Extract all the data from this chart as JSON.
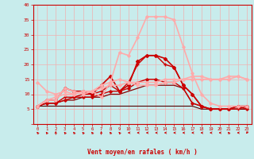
{
  "x": [
    0,
    1,
    2,
    3,
    4,
    5,
    6,
    7,
    8,
    9,
    10,
    11,
    12,
    13,
    14,
    15,
    16,
    17,
    18,
    19,
    20,
    21,
    22,
    23
  ],
  "background_color": "#c8ecec",
  "grid_color": "#f0b0b0",
  "xlabel": "Vent moyen/en rafales ( km/h )",
  "xlabel_color": "#cc0000",
  "tick_color": "#cc0000",
  "ylim": [
    0,
    40
  ],
  "yticks": [
    0,
    5,
    10,
    15,
    20,
    25,
    30,
    35,
    40
  ],
  "series": [
    {
      "y": [
        6,
        6,
        6,
        6,
        6,
        6,
        6,
        6,
        6,
        6,
        6,
        6,
        6,
        6,
        6,
        6,
        6,
        6,
        5,
        5,
        5,
        5,
        5,
        5
      ],
      "color": "#550000",
      "lw": 0.8,
      "marker": null,
      "ms": 0
    },
    {
      "y": [
        6,
        7,
        7,
        8,
        8,
        9,
        9,
        9,
        10,
        10,
        11,
        12,
        13,
        13,
        13,
        13,
        12,
        7,
        6,
        5,
        5,
        5,
        5,
        5
      ],
      "color": "#880000",
      "lw": 0.9,
      "marker": null,
      "ms": 0
    },
    {
      "y": [
        6,
        7,
        7,
        8,
        9,
        9,
        9,
        10,
        11,
        11,
        12,
        14,
        15,
        15,
        14,
        14,
        12,
        7,
        6,
        5,
        5,
        5,
        6,
        5
      ],
      "color": "#cc0000",
      "lw": 1.0,
      "marker": "D",
      "ms": 1.8
    },
    {
      "y": [
        6,
        7,
        7,
        9,
        9,
        10,
        10,
        11,
        13,
        11,
        14,
        20,
        23,
        23,
        20,
        19,
        13,
        10,
        6,
        5,
        5,
        5,
        5,
        6
      ],
      "color": "#cc0000",
      "lw": 1.0,
      "marker": "+",
      "ms": 3.5
    },
    {
      "y": [
        6,
        8,
        8,
        12,
        11,
        11,
        10,
        13,
        16,
        11,
        13,
        21,
        23,
        23,
        22,
        19,
        13,
        10,
        6,
        5,
        5,
        5,
        6,
        6
      ],
      "color": "#cc0000",
      "lw": 1.2,
      "marker": "D",
      "ms": 2.0
    },
    {
      "y": [
        6,
        8,
        9,
        10,
        10,
        11,
        11,
        12,
        13,
        13,
        14,
        14,
        14,
        14,
        15,
        15,
        15,
        15,
        15,
        15,
        15,
        15,
        16,
        15
      ],
      "color": "#ffaaaa",
      "lw": 1.2,
      "marker": "D",
      "ms": 1.8
    },
    {
      "y": [
        14,
        11,
        10,
        11,
        10,
        11,
        11,
        13,
        14,
        15,
        14,
        13,
        13,
        13,
        14,
        14,
        15,
        16,
        16,
        15,
        15,
        16,
        16,
        15
      ],
      "color": "#ffaaaa",
      "lw": 1.2,
      "marker": "D",
      "ms": 1.8
    },
    {
      "y": [
        6,
        8,
        8,
        12,
        11,
        10,
        11,
        9,
        14,
        24,
        23,
        29,
        36,
        36,
        36,
        35,
        26,
        17,
        10,
        7,
        6,
        6,
        6,
        6
      ],
      "color": "#ffaaaa",
      "lw": 1.2,
      "marker": "D",
      "ms": 1.8
    }
  ],
  "wind_dirs": [
    315,
    315,
    0,
    315,
    315,
    315,
    315,
    0,
    315,
    315,
    270,
    270,
    270,
    270,
    270,
    270,
    270,
    270,
    270,
    270,
    270,
    315,
    270,
    225
  ],
  "wind_color": "#cc0000"
}
